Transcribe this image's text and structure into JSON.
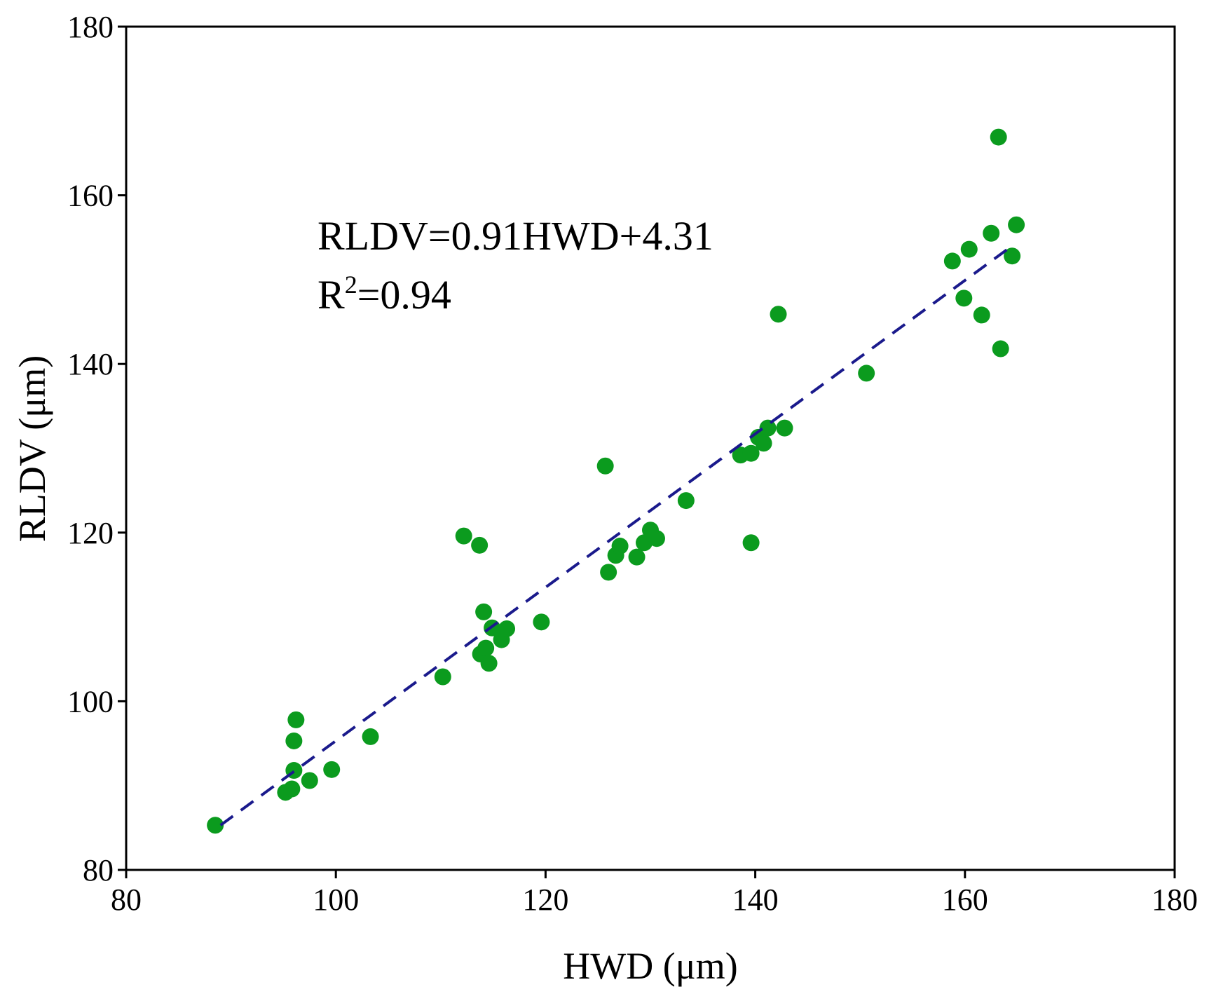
{
  "chart_data": {
    "type": "scatter",
    "title": "",
    "xlabel": "HWD (μm)",
    "ylabel": "RLDV (μm)",
    "xlim": [
      80,
      180
    ],
    "ylim": [
      80,
      180
    ],
    "xticks": [
      80,
      100,
      120,
      140,
      160,
      180
    ],
    "yticks": [
      80,
      100,
      120,
      140,
      160,
      180
    ],
    "grid": false,
    "legend": "none",
    "point_color": "#0b9b1e",
    "fit_color": "#1a1a8c",
    "annotation": {
      "equation": "RLDV=0.91HWD+4.31",
      "r2_prefix": "R",
      "r2_sup": "2",
      "r2_value": "=0.94"
    },
    "fit_line": {
      "slope": 0.91,
      "intercept": 4.31,
      "x_range": [
        89,
        164.5
      ]
    },
    "series": [
      {
        "name": "data",
        "points": [
          [
            88.5,
            85.3
          ],
          [
            95.2,
            89.2
          ],
          [
            95.8,
            89.6
          ],
          [
            96.0,
            91.8
          ],
          [
            96.0,
            95.3
          ],
          [
            96.2,
            97.8
          ],
          [
            97.5,
            90.6
          ],
          [
            99.6,
            91.9
          ],
          [
            103.3,
            95.8
          ],
          [
            110.2,
            102.9
          ],
          [
            112.2,
            119.6
          ],
          [
            113.7,
            118.5
          ],
          [
            113.8,
            105.6
          ],
          [
            114.1,
            110.6
          ],
          [
            114.3,
            106.3
          ],
          [
            114.6,
            104.5
          ],
          [
            114.9,
            108.7
          ],
          [
            115.8,
            107.3
          ],
          [
            116.3,
            108.6
          ],
          [
            119.6,
            109.4
          ],
          [
            125.7,
            127.9
          ],
          [
            126.0,
            115.3
          ],
          [
            126.7,
            117.3
          ],
          [
            127.1,
            118.4
          ],
          [
            128.7,
            117.1
          ],
          [
            129.4,
            118.8
          ],
          [
            130.0,
            120.3
          ],
          [
            130.6,
            119.3
          ],
          [
            133.4,
            123.8
          ],
          [
            138.6,
            129.2
          ],
          [
            139.6,
            118.8
          ],
          [
            139.6,
            129.4
          ],
          [
            140.3,
            131.3
          ],
          [
            140.8,
            130.6
          ],
          [
            141.2,
            132.4
          ],
          [
            142.2,
            145.9
          ],
          [
            142.8,
            132.4
          ],
          [
            150.6,
            138.9
          ],
          [
            158.8,
            152.2
          ],
          [
            159.9,
            147.8
          ],
          [
            160.4,
            153.6
          ],
          [
            161.6,
            145.8
          ],
          [
            162.5,
            155.5
          ],
          [
            163.2,
            166.9
          ],
          [
            163.4,
            141.8
          ],
          [
            164.5,
            152.8
          ],
          [
            164.9,
            156.5
          ]
        ]
      }
    ]
  }
}
